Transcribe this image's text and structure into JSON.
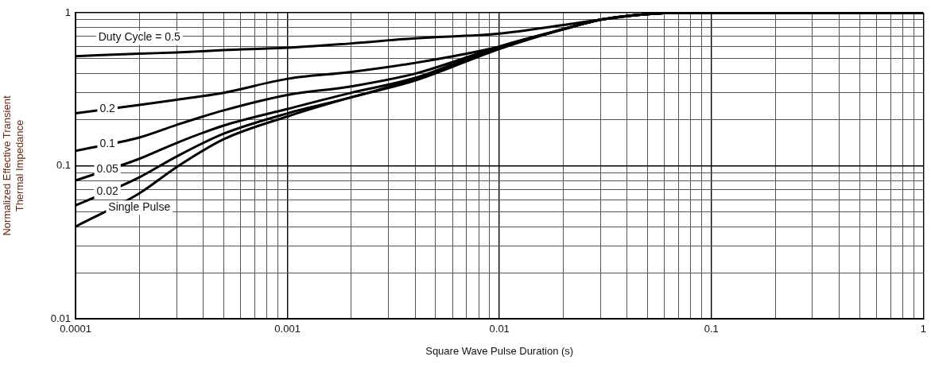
{
  "chart_data": {
    "type": "line",
    "xlabel": "Square Wave Pulse Duration (s)",
    "ylabel": "Normalized Effective Transient\nThermal Impedance",
    "x": [
      0.0001,
      0.0002,
      0.0003,
      0.0005,
      0.001,
      0.002,
      0.004,
      0.01,
      0.02,
      0.03,
      0.05,
      0.07,
      1
    ],
    "series": [
      {
        "name": "Duty Cycle = 0.5",
        "color": "#000000",
        "values": [
          0.52,
          0.54,
          0.55,
          0.57,
          0.59,
          0.63,
          0.68,
          0.73,
          0.83,
          0.9,
          0.98,
          1,
          1
        ]
      },
      {
        "name": "0.2",
        "color": "#000000",
        "values": [
          0.22,
          0.25,
          0.27,
          0.3,
          0.37,
          0.41,
          0.47,
          0.6,
          0.78,
          0.9,
          0.98,
          1,
          1
        ]
      },
      {
        "name": "0.1",
        "color": "#000000",
        "values": [
          0.125,
          0.153,
          0.185,
          0.23,
          0.29,
          0.33,
          0.4,
          0.6,
          0.78,
          0.9,
          0.98,
          1,
          1
        ]
      },
      {
        "name": "0.05",
        "color": "#000000",
        "values": [
          0.08,
          0.111,
          0.141,
          0.183,
          0.235,
          0.3,
          0.375,
          0.6,
          0.78,
          0.9,
          0.98,
          1,
          1
        ]
      },
      {
        "name": "0.02",
        "color": "#000000",
        "values": [
          0.055,
          0.084,
          0.115,
          0.162,
          0.22,
          0.28,
          0.37,
          0.59,
          0.78,
          0.9,
          0.98,
          1,
          1
        ]
      },
      {
        "name": "Single Pulse",
        "color": "#000000",
        "values": [
          0.04,
          0.066,
          0.098,
          0.149,
          0.21,
          0.28,
          0.36,
          0.58,
          0.78,
          0.9,
          0.98,
          1,
          1
        ]
      }
    ],
    "log": "xy",
    "xlim": [
      0.0001,
      1
    ],
    "ylim": [
      0.01,
      1
    ],
    "xticks": [
      0.0001,
      {
        "value": 0.0002,
        "label": null
      },
      {
        "value": 0.0003,
        "label": null
      },
      {
        "value": 0.0004,
        "label": null
      },
      {
        "value": 0.0005,
        "label": null
      },
      {
        "value": 0.0006,
        "label": null
      },
      {
        "value": 0.0007,
        "label": null
      },
      {
        "value": 0.0008,
        "label": null
      },
      {
        "value": 0.0009,
        "label": null
      },
      0.001,
      {
        "value": 0.002,
        "label": null
      },
      {
        "value": 0.003,
        "label": null
      },
      {
        "value": 0.004,
        "label": null
      },
      {
        "value": 0.005,
        "label": null
      },
      {
        "value": 0.006,
        "label": null
      },
      {
        "value": 0.007,
        "label": null
      },
      {
        "value": 0.008,
        "label": null
      },
      {
        "value": 0.009,
        "label": null
      },
      0.01,
      {
        "value": 0.02,
        "label": null
      },
      {
        "value": 0.03,
        "label": null
      },
      {
        "value": 0.04,
        "label": null
      },
      {
        "value": 0.05,
        "label": null
      },
      {
        "value": 0.06,
        "label": null
      },
      {
        "value": 0.07,
        "label": null
      },
      {
        "value": 0.08,
        "label": null
      },
      {
        "value": 0.09,
        "label": null
      },
      0.1,
      {
        "value": 0.2,
        "label": null
      },
      {
        "value": 0.3,
        "label": null
      },
      {
        "value": 0.4,
        "label": null
      },
      {
        "value": 0.5,
        "label": null
      },
      {
        "value": 0.6,
        "label": null
      },
      {
        "value": 0.7,
        "label": null
      },
      {
        "value": 0.8,
        "label": null
      },
      {
        "value": 0.9,
        "label": null
      },
      1
    ],
    "yticks": [
      0.01,
      {
        "value": 0.02,
        "label": null
      },
      {
        "value": 0.03,
        "label": null
      },
      {
        "value": 0.04,
        "label": null
      },
      {
        "value": 0.05,
        "label": null
      },
      {
        "value": 0.06,
        "label": null
      },
      {
        "value": 0.07,
        "label": null
      },
      {
        "value": 0.08,
        "label": null
      },
      {
        "value": 0.09,
        "label": null
      },
      0.1,
      {
        "value": 0.2,
        "label": null
      },
      {
        "value": 0.3,
        "label": null
      },
      {
        "value": 0.4,
        "label": null
      },
      {
        "value": 0.5,
        "label": null
      },
      {
        "value": 0.6,
        "label": null
      },
      {
        "value": 0.7,
        "label": null
      },
      {
        "value": 0.8,
        "label": null
      },
      {
        "value": 0.9,
        "label": null
      },
      1
    ],
    "grid": true,
    "marker": "none",
    "line_style": "solid",
    "legend": false
  }
}
